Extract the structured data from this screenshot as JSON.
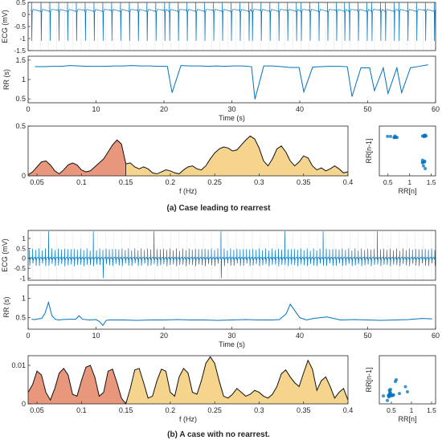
{
  "chart_data": [
    {
      "type": "line",
      "id": "a_ecg",
      "ylabel": "ECG (mV)",
      "xlim": [
        0,
        60
      ],
      "ylim": [
        -1.5,
        0.5
      ],
      "yticks": [
        0.5,
        0,
        -0.5,
        -1,
        -1.5
      ],
      "ytick_labels": [
        "0.5",
        "0",
        "-0.5",
        "-1",
        "-1.5"
      ],
      "beat_times_s": [
        0.5,
        1.9,
        3.2,
        4.5,
        5.8,
        7.1,
        8.4,
        9.7,
        11.0,
        12.3,
        13.6,
        14.9,
        16.2,
        17.5,
        18.8,
        20.1,
        20.8,
        22.1,
        23.4,
        24.7,
        26.0,
        27.3,
        28.6,
        29.9,
        31.2,
        32.5,
        33.0,
        34.3,
        35.6,
        36.9,
        38.2,
        39.5,
        40.2,
        41.5,
        42.8,
        44.1,
        45.4,
        46.6,
        47.3,
        48.6,
        49.9,
        50.6,
        51.9,
        52.6,
        53.9,
        54.6,
        55.9,
        57.2,
        58.5,
        59.8
      ],
      "baseline_mV": 0.15,
      "r_peak_mV": 0.5,
      "s_trough_mV": -1.1,
      "grid": true,
      "line_color": "#0072bd"
    },
    {
      "type": "line",
      "id": "a_rr",
      "ylabel": "RR (s)",
      "xlabel": "Time (s)",
      "xlim": [
        0,
        60
      ],
      "ylim": [
        0.4,
        1.6
      ],
      "yticks": [
        0.5,
        1,
        1.5
      ],
      "ytick_labels": [
        "0.5",
        "1",
        "1.5"
      ],
      "xticks": [
        0,
        10,
        20,
        30,
        40,
        50,
        60
      ],
      "xtick_labels": [
        "0",
        "10",
        "20",
        "30",
        "40",
        "50",
        "60"
      ],
      "x": [
        1,
        2.3,
        3.6,
        4.9,
        6.2,
        7.5,
        8.8,
        10.1,
        11.4,
        12.7,
        14.0,
        15.3,
        16.6,
        17.9,
        19.2,
        20.5,
        21.2,
        22.5,
        23.8,
        25.1,
        26.4,
        27.7,
        29.0,
        30.3,
        31.6,
        32.9,
        33.4,
        34.7,
        36.0,
        37.3,
        38.6,
        39.9,
        40.6,
        41.9,
        43.2,
        44.5,
        45.8,
        47.0,
        47.7,
        49.0,
        50.3,
        51.0,
        52.3,
        53.0,
        54.3,
        55.0,
        56.3,
        57.6,
        58.9
      ],
      "y": [
        1.33,
        1.33,
        1.34,
        1.34,
        1.36,
        1.35,
        1.34,
        1.34,
        1.34,
        1.35,
        1.35,
        1.36,
        1.35,
        1.35,
        1.34,
        1.34,
        0.66,
        1.36,
        1.35,
        1.35,
        1.34,
        1.35,
        1.34,
        1.35,
        1.35,
        1.33,
        0.49,
        1.35,
        1.35,
        1.33,
        1.31,
        1.31,
        0.68,
        1.32,
        1.33,
        1.34,
        1.34,
        1.33,
        0.56,
        1.3,
        1.3,
        0.71,
        1.3,
        0.64,
        1.3,
        0.66,
        1.3,
        1.34,
        1.38
      ],
      "grid": false,
      "line_color": "#0072bd"
    },
    {
      "type": "area",
      "id": "a_psd",
      "xlabel": "f (Hz)",
      "xlim": [
        0.04,
        0.4
      ],
      "ylim": [
        0,
        0.5
      ],
      "yticks": [
        0,
        0.5
      ],
      "ytick_labels": [
        "0",
        "0.5"
      ],
      "xticks": [
        0.05,
        0.1,
        0.15,
        0.2,
        0.25,
        0.3,
        0.35,
        0.4
      ],
      "xtick_labels": [
        "0.05",
        "0.1",
        "0.15",
        "0.2",
        "0.25",
        "0.3",
        "0.35",
        "0.4"
      ],
      "x": [
        0.04,
        0.045,
        0.05,
        0.055,
        0.06,
        0.065,
        0.07,
        0.075,
        0.08,
        0.085,
        0.09,
        0.095,
        0.1,
        0.105,
        0.11,
        0.115,
        0.12,
        0.125,
        0.13,
        0.135,
        0.14,
        0.145,
        0.15,
        0.155,
        0.16,
        0.165,
        0.17,
        0.175,
        0.18,
        0.185,
        0.19,
        0.195,
        0.2,
        0.205,
        0.21,
        0.215,
        0.22,
        0.225,
        0.23,
        0.235,
        0.24,
        0.245,
        0.25,
        0.255,
        0.26,
        0.265,
        0.27,
        0.275,
        0.28,
        0.285,
        0.29,
        0.295,
        0.3,
        0.305,
        0.31,
        0.315,
        0.32,
        0.325,
        0.33,
        0.335,
        0.34,
        0.345,
        0.35,
        0.355,
        0.36,
        0.365,
        0.37,
        0.375,
        0.38,
        0.385,
        0.39,
        0.395,
        0.4
      ],
      "y": [
        0.01,
        0.04,
        0.09,
        0.14,
        0.15,
        0.11,
        0.05,
        0.02,
        0.06,
        0.11,
        0.13,
        0.11,
        0.06,
        0.04,
        0.05,
        0.09,
        0.13,
        0.17,
        0.24,
        0.31,
        0.36,
        0.32,
        0.12,
        0.13,
        0.09,
        0.07,
        0.09,
        0.07,
        0.03,
        0.02,
        0.04,
        0.06,
        0.05,
        0.03,
        0.02,
        0.06,
        0.09,
        0.1,
        0.07,
        0.06,
        0.1,
        0.17,
        0.23,
        0.27,
        0.29,
        0.28,
        0.25,
        0.26,
        0.31,
        0.36,
        0.4,
        0.37,
        0.28,
        0.15,
        0.1,
        0.17,
        0.27,
        0.3,
        0.24,
        0.15,
        0.1,
        0.14,
        0.2,
        0.18,
        0.1,
        0.06,
        0.08,
        0.05,
        0.07,
        0.1,
        0.07,
        0.03,
        0.04
      ],
      "lf_band": [
        0.04,
        0.15
      ],
      "hf_band": [
        0.15,
        0.4
      ],
      "lf_color": "#e8977c",
      "hf_color": "#f5d58e"
    },
    {
      "type": "scatter",
      "id": "a_poincare",
      "xlabel": "RR[n]",
      "ylabel": "RR[n-1]",
      "xlim": [
        0.3,
        1.6
      ],
      "ylim": [
        0.3,
        1.6
      ],
      "xticks": [
        0.5,
        1,
        1.5
      ],
      "xtick_labels": [
        "0.5",
        "1",
        "1.5"
      ],
      "x": [
        1.33,
        1.34,
        1.35,
        1.36,
        1.34,
        1.35,
        1.33,
        1.34,
        1.36,
        1.35,
        1.34,
        0.66,
        1.36,
        0.49,
        1.35,
        0.68,
        1.32,
        0.56,
        1.3,
        0.71,
        1.3,
        0.64,
        1.3,
        0.66,
        1.3,
        1.38
      ],
      "y": [
        1.33,
        1.34,
        1.35,
        1.36,
        1.35,
        1.34,
        1.34,
        1.33,
        1.35,
        1.36,
        0.66,
        1.34,
        0.49,
        1.33,
        0.68,
        1.31,
        0.56,
        1.33,
        0.71,
        1.3,
        0.64,
        1.3,
        0.66,
        1.3,
        1.34,
        1.34
      ],
      "marker_color": "#0072bd"
    },
    {
      "type": "line",
      "id": "b_ecg",
      "ylabel": "ECG (mV)",
      "xlim": [
        0,
        60
      ],
      "ylim": [
        -1.1,
        1.4
      ],
      "yticks": [
        1,
        0.5,
        0,
        -0.5,
        -1
      ],
      "ytick_labels": [
        "1",
        "0.5",
        "0",
        "-0.5",
        "-1"
      ],
      "beat_interval_s": 0.47,
      "baseline_mV": 0.0,
      "r_peak_mV": 0.5,
      "tall_spike_times_s": [
        3.1,
        9.4,
        18.4,
        28.2,
        38.0,
        43.4,
        51.6
      ],
      "tall_spike_mV": 1.35,
      "deep_trough_times_s": [
        10.8,
        28.6
      ],
      "deep_trough_mV": -1.0,
      "grid": true,
      "line_color": "#0072bd"
    },
    {
      "type": "line",
      "id": "b_rr",
      "ylabel": "RR (s)",
      "xlabel": "Time (s)",
      "xlim": [
        0,
        60
      ],
      "ylim": [
        0.2,
        1.35
      ],
      "yticks": [
        0.5,
        1
      ],
      "ytick_labels": [
        "0.5",
        "1"
      ],
      "xticks": [
        0,
        10,
        20,
        30,
        40,
        50,
        60
      ],
      "xtick_labels": [
        "0",
        "10",
        "20",
        "30",
        "40",
        "50",
        "60"
      ],
      "x": [
        0.5,
        1.0,
        1.5,
        2.0,
        2.5,
        3.0,
        3.5,
        4.0,
        4.5,
        5.0,
        6.0,
        7.0,
        7.5,
        8.0,
        9.0,
        10.0,
        10.5,
        11.0,
        11.5,
        12.0,
        14.0,
        16.0,
        18.0,
        20.0,
        22.0,
        24.0,
        26.0,
        28.0,
        30.0,
        32.0,
        34.0,
        36.0,
        37.0,
        38.0,
        38.6,
        39.2,
        40.0,
        41.0,
        42.0,
        44.0,
        46.0,
        48.0,
        50.0,
        52.0,
        54.0,
        56.0,
        58.0,
        59.5
      ],
      "y": [
        0.46,
        0.45,
        0.47,
        0.48,
        0.62,
        0.9,
        0.55,
        0.46,
        0.44,
        0.45,
        0.46,
        0.46,
        0.55,
        0.46,
        0.44,
        0.45,
        0.4,
        0.3,
        0.43,
        0.44,
        0.44,
        0.43,
        0.44,
        0.44,
        0.45,
        0.44,
        0.44,
        0.43,
        0.44,
        0.45,
        0.44,
        0.44,
        0.45,
        0.6,
        0.85,
        0.7,
        0.5,
        0.44,
        0.48,
        0.52,
        0.44,
        0.45,
        0.44,
        0.43,
        0.44,
        0.45,
        0.48,
        0.47
      ],
      "grid": false,
      "line_color": "#0072bd"
    },
    {
      "type": "area",
      "id": "b_psd",
      "xlabel": "f (Hz)",
      "xlim": [
        0.04,
        0.4
      ],
      "ylim": [
        0,
        0.0125
      ],
      "yticks": [
        0,
        0.01
      ],
      "ytick_labels": [
        "0",
        "0.01"
      ],
      "xticks": [
        0.05,
        0.1,
        0.15,
        0.2,
        0.25,
        0.3,
        0.35,
        0.4
      ],
      "xtick_labels": [
        "0.05",
        "0.1",
        "0.15",
        "0.2",
        "0.25",
        "0.3",
        "0.35",
        "0.4"
      ],
      "x": [
        0.04,
        0.045,
        0.05,
        0.055,
        0.06,
        0.065,
        0.07,
        0.075,
        0.08,
        0.085,
        0.09,
        0.095,
        0.1,
        0.105,
        0.11,
        0.115,
        0.12,
        0.125,
        0.13,
        0.135,
        0.14,
        0.145,
        0.15,
        0.155,
        0.16,
        0.165,
        0.17,
        0.175,
        0.18,
        0.185,
        0.19,
        0.195,
        0.2,
        0.205,
        0.21,
        0.215,
        0.22,
        0.225,
        0.23,
        0.235,
        0.24,
        0.245,
        0.25,
        0.255,
        0.26,
        0.265,
        0.27,
        0.275,
        0.28,
        0.285,
        0.29,
        0.295,
        0.3,
        0.305,
        0.31,
        0.315,
        0.32,
        0.325,
        0.33,
        0.335,
        0.34,
        0.345,
        0.35,
        0.355,
        0.36,
        0.365,
        0.37,
        0.375,
        0.38,
        0.385,
        0.39,
        0.395,
        0.4
      ],
      "y": [
        0.003,
        0.005,
        0.0085,
        0.0075,
        0.003,
        0.001,
        0.004,
        0.008,
        0.0092,
        0.0075,
        0.0025,
        0.002,
        0.006,
        0.0095,
        0.01,
        0.007,
        0.002,
        0.003,
        0.0085,
        0.009,
        0.0055,
        0.0015,
        0.0,
        0.004,
        0.0088,
        0.0092,
        0.0055,
        0.0015,
        0.002,
        0.006,
        0.009,
        0.0085,
        0.003,
        0.002,
        0.007,
        0.0092,
        0.008,
        0.003,
        0.0025,
        0.006,
        0.0105,
        0.0122,
        0.0105,
        0.006,
        0.002,
        0.0015,
        0.0025,
        0.004,
        0.003,
        0.002,
        0.0025,
        0.0035,
        0.003,
        0.002,
        0.0015,
        0.0025,
        0.0045,
        0.0078,
        0.0088,
        0.007,
        0.0055,
        0.0045,
        0.008,
        0.0113,
        0.009,
        0.0035,
        0.006,
        0.007,
        0.0045,
        0.0015,
        0.003,
        0.004,
        0.001
      ],
      "lf_band": [
        0.04,
        0.15
      ],
      "hf_band": [
        0.15,
        0.4
      ],
      "lf_color": "#e8977c",
      "hf_color": "#f5d58e"
    },
    {
      "type": "scatter",
      "id": "b_poincare",
      "xlabel": "RR[n]",
      "ylabel": "RR[n-1]",
      "xlim": [
        0.2,
        1.6
      ],
      "ylim": [
        0.2,
        1.6
      ],
      "xticks": [
        0.5,
        1,
        1.5
      ],
      "xtick_labels": [
        "0.5",
        "1",
        "1.5"
      ],
      "x": [
        0.46,
        0.45,
        0.47,
        0.48,
        0.62,
        0.9,
        0.55,
        0.46,
        0.44,
        0.45,
        0.46,
        0.55,
        0.44,
        0.4,
        0.3,
        0.43,
        0.44,
        0.45,
        0.6,
        0.85,
        0.7,
        0.5,
        0.48,
        0.52,
        0.44,
        0.43
      ],
      "y": [
        0.45,
        0.47,
        0.48,
        0.62,
        0.9,
        0.55,
        0.46,
        0.44,
        0.45,
        0.46,
        0.55,
        0.46,
        0.4,
        0.3,
        0.43,
        0.44,
        0.45,
        0.6,
        0.85,
        0.7,
        0.5,
        0.44,
        0.52,
        0.44,
        0.45,
        0.44
      ],
      "marker_color": "#0072bd"
    }
  ],
  "captions": {
    "a": "(a) Case leading to rearrest",
    "b": "(b) A case with no rearrest."
  }
}
